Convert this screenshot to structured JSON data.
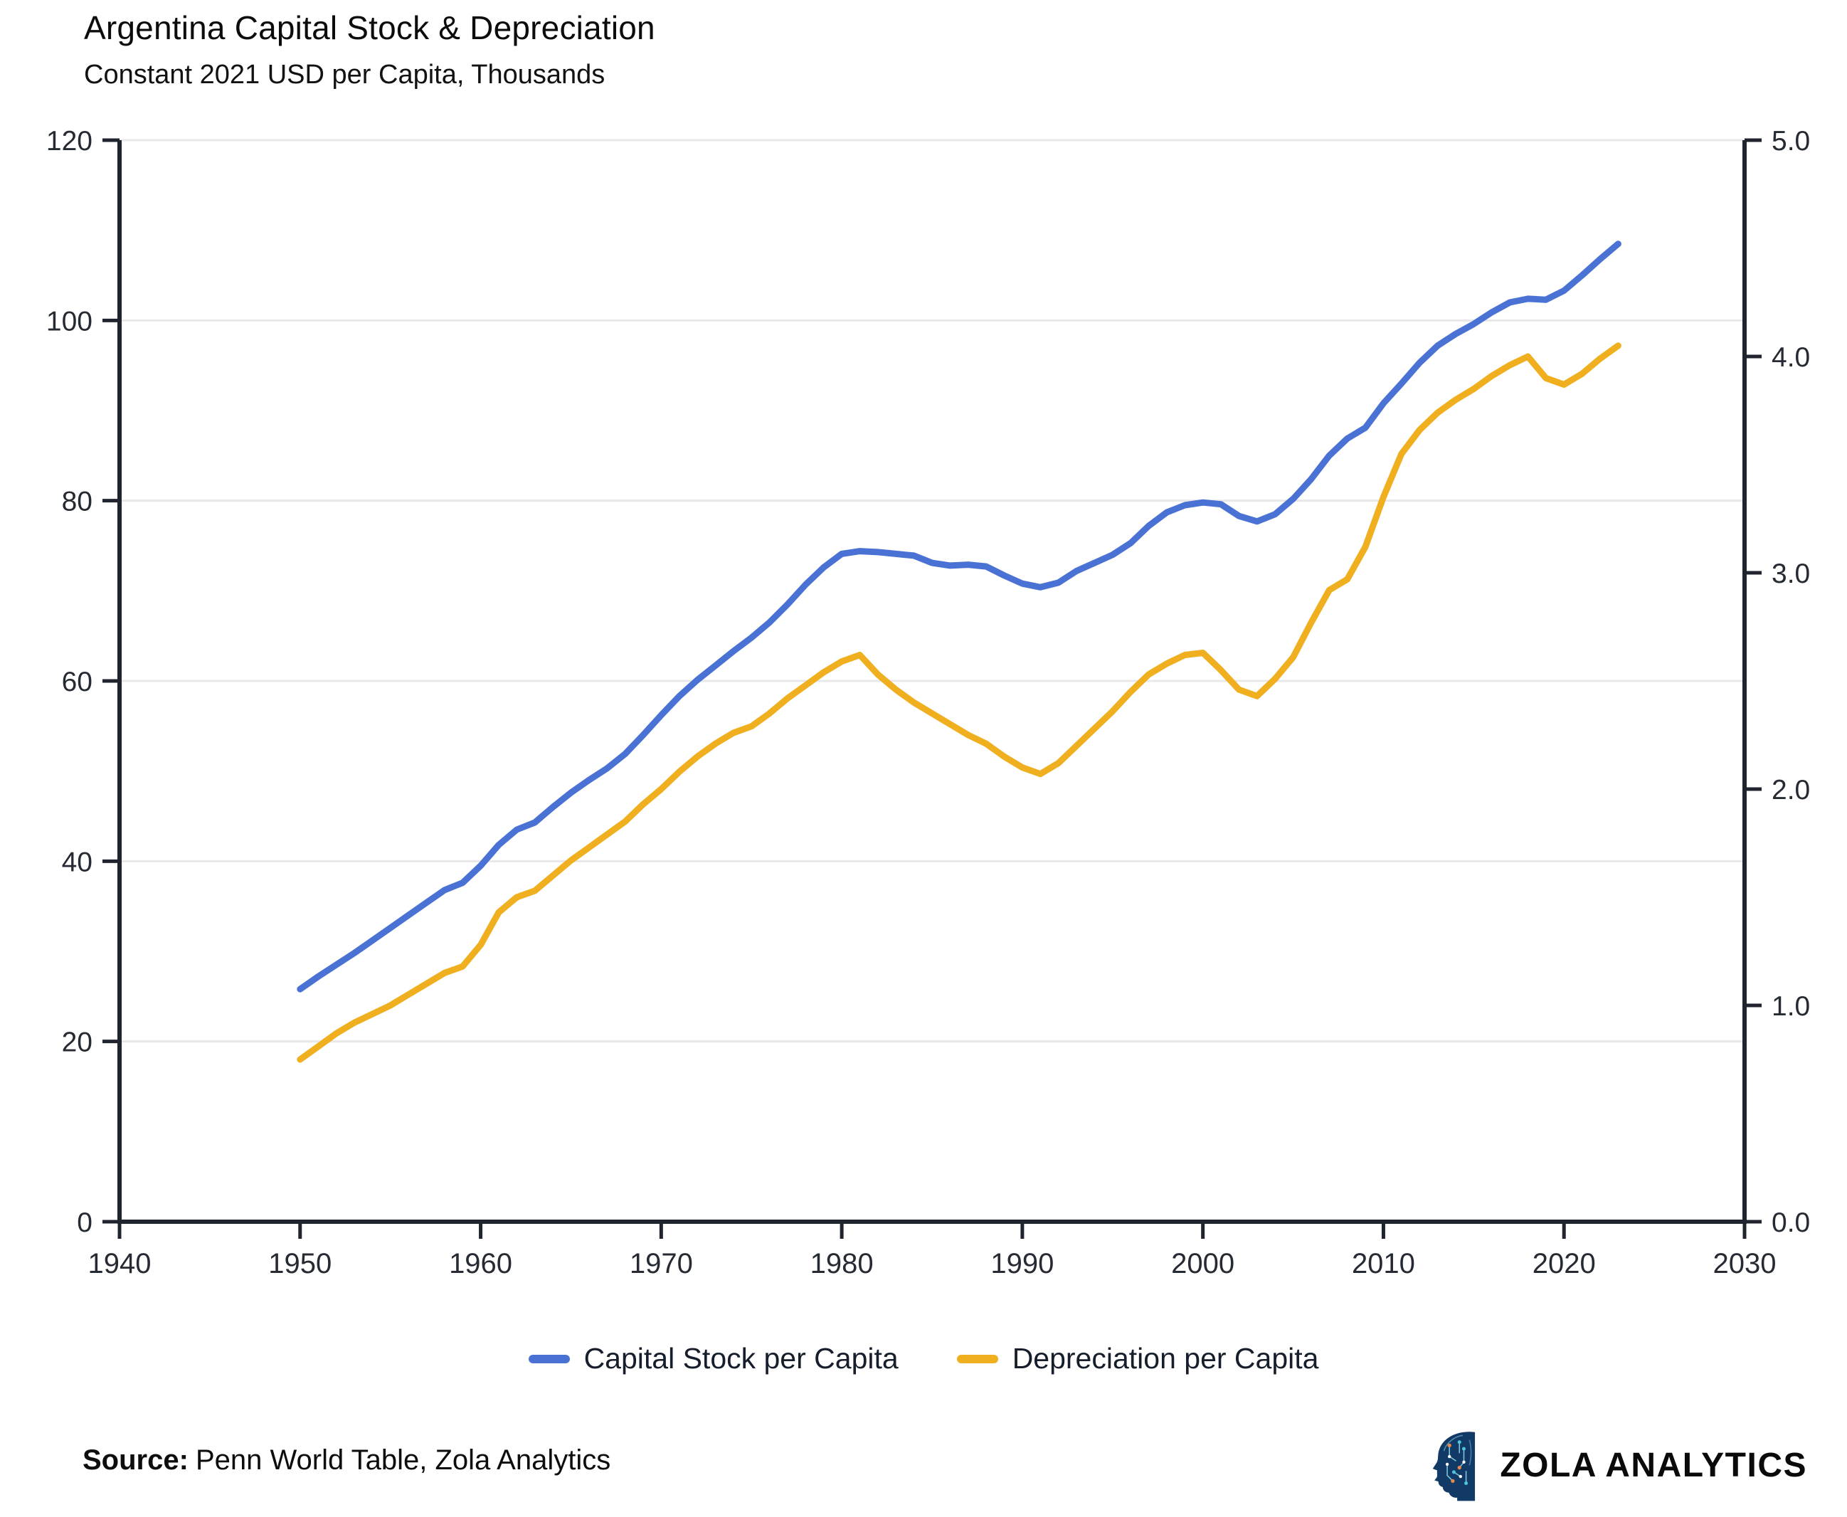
{
  "header": {
    "title": "Argentina Capital Stock & Depreciation",
    "subtitle": "Constant 2021 USD per Capita, Thousands"
  },
  "legend": [
    {
      "label": "Capital Stock per Capita",
      "color": "#4A72D4"
    },
    {
      "label": "Depreciation per Capita",
      "color": "#EFAF1F"
    }
  ],
  "source": {
    "label": "Source:",
    "text": "Penn World Table, Zola Analytics"
  },
  "branding": {
    "name": "ZOLA ANALYTICS"
  },
  "colors": {
    "axis": "#20242e",
    "grid": "#e8e8e8",
    "tick_text": "#262a33",
    "capital_stock": "#4A72D4",
    "depreciation": "#EFAF1F",
    "logo_navy": "#123A66"
  },
  "chart_data": {
    "type": "line",
    "title": "Argentina Capital Stock & Depreciation",
    "subtitle": "Constant 2021 USD per Capita, Thousands",
    "grid": "horizontal",
    "legend_position": "bottom",
    "x_axis": {
      "min": 1940,
      "max": 2030,
      "ticks": [
        1940,
        1950,
        1960,
        1970,
        1980,
        1990,
        2000,
        2010,
        2020,
        2030
      ]
    },
    "y_axis_left": {
      "min": 0,
      "max": 120,
      "ticks": [
        0,
        20,
        40,
        60,
        80,
        100,
        120
      ]
    },
    "y_axis_right": {
      "min": 0,
      "max": 5,
      "ticks": [
        0,
        1,
        2,
        3,
        4,
        5
      ],
      "decimals": 1
    },
    "x": [
      1950,
      1951,
      1952,
      1953,
      1954,
      1955,
      1956,
      1957,
      1958,
      1959,
      1960,
      1961,
      1962,
      1963,
      1964,
      1965,
      1966,
      1967,
      1968,
      1969,
      1970,
      1971,
      1972,
      1973,
      1974,
      1975,
      1976,
      1977,
      1978,
      1979,
      1980,
      1981,
      1982,
      1983,
      1984,
      1985,
      1986,
      1987,
      1988,
      1989,
      1990,
      1991,
      1992,
      1993,
      1994,
      1995,
      1996,
      1997,
      1998,
      1999,
      2000,
      2001,
      2002,
      2003,
      2004,
      2005,
      2006,
      2007,
      2008,
      2009,
      2010,
      2011,
      2012,
      2013,
      2014,
      2015,
      2016,
      2017,
      2018,
      2019,
      2020,
      2021,
      2022,
      2023
    ],
    "series": [
      {
        "id": "capital-stock",
        "name": "Capital Stock per Capita",
        "axis": "left",
        "color": "#4A72D4",
        "values": [
          25.8,
          27.2,
          28.5,
          29.8,
          31.2,
          32.6,
          34.0,
          35.4,
          36.8,
          37.6,
          39.5,
          41.8,
          43.5,
          44.3,
          46.0,
          47.6,
          49.0,
          50.3,
          51.9,
          54.0,
          56.2,
          58.3,
          60.1,
          61.7,
          63.3,
          64.8,
          66.5,
          68.5,
          70.7,
          72.6,
          74.1,
          74.4,
          74.3,
          74.1,
          73.9,
          73.1,
          72.8,
          72.9,
          72.7,
          71.7,
          70.8,
          70.4,
          70.9,
          72.2,
          73.1,
          74.0,
          75.3,
          77.2,
          78.7,
          79.5,
          79.8,
          79.6,
          78.3,
          77.7,
          78.5,
          80.2,
          82.4,
          85.0,
          86.9,
          88.1,
          90.8,
          93.0,
          95.3,
          97.2,
          98.5,
          99.6,
          100.9,
          102.0,
          102.4,
          102.3,
          103.3,
          105.0,
          106.8,
          108.5
        ]
      },
      {
        "id": "depreciation",
        "name": "Depreciation per Capita",
        "axis": "right",
        "color": "#EFAF1F",
        "values": [
          0.75,
          0.81,
          0.87,
          0.92,
          0.96,
          1.0,
          1.05,
          1.1,
          1.15,
          1.18,
          1.28,
          1.43,
          1.5,
          1.53,
          1.6,
          1.67,
          1.73,
          1.79,
          1.85,
          1.93,
          2.0,
          2.08,
          2.15,
          2.21,
          2.26,
          2.29,
          2.35,
          2.42,
          2.48,
          2.54,
          2.59,
          2.62,
          2.53,
          2.46,
          2.4,
          2.35,
          2.3,
          2.25,
          2.21,
          2.15,
          2.1,
          2.07,
          2.12,
          2.2,
          2.28,
          2.36,
          2.45,
          2.53,
          2.58,
          2.62,
          2.63,
          2.55,
          2.46,
          2.43,
          2.51,
          2.61,
          2.77,
          2.92,
          2.97,
          3.12,
          3.35,
          3.55,
          3.66,
          3.74,
          3.8,
          3.85,
          3.91,
          3.96,
          4.0,
          3.9,
          3.87,
          3.92,
          3.99,
          4.05
        ]
      }
    ]
  }
}
